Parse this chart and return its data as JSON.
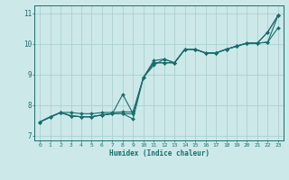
{
  "xlabel": "Humidex (Indice chaleur)",
  "xlim": [
    -0.5,
    23.5
  ],
  "ylim": [
    6.85,
    11.25
  ],
  "xticks": [
    0,
    1,
    2,
    3,
    4,
    5,
    6,
    7,
    8,
    9,
    10,
    11,
    12,
    13,
    14,
    15,
    16,
    17,
    18,
    19,
    20,
    21,
    22,
    23
  ],
  "yticks": [
    7,
    8,
    9,
    10,
    11
  ],
  "bg_color": "#cce8e8",
  "line_color": "#1a6e6e",
  "grid_color": "#a8cccc",
  "line1_x": [
    0,
    1,
    2,
    3,
    4,
    5,
    6,
    7,
    8,
    9,
    10,
    11,
    12,
    13,
    14,
    15,
    16,
    17,
    18,
    19,
    20,
    21,
    22,
    23
  ],
  "line1_y": [
    7.45,
    7.62,
    7.76,
    7.76,
    7.72,
    7.72,
    7.76,
    7.76,
    7.78,
    7.78,
    8.9,
    9.38,
    9.38,
    9.38,
    9.82,
    9.82,
    9.7,
    9.7,
    9.82,
    9.92,
    10.02,
    10.02,
    10.05,
    10.52
  ],
  "line2_x": [
    0,
    1,
    2,
    3,
    4,
    5,
    6,
    7,
    8,
    9,
    10,
    11,
    12,
    13,
    14,
    15,
    16,
    17,
    18,
    19,
    20,
    21,
    22,
    23
  ],
  "line2_y": [
    7.45,
    7.62,
    7.76,
    7.65,
    7.62,
    7.62,
    7.68,
    7.72,
    7.72,
    7.72,
    8.9,
    9.38,
    9.38,
    9.38,
    9.82,
    9.82,
    9.7,
    9.7,
    9.82,
    9.92,
    10.02,
    10.02,
    10.38,
    10.92
  ],
  "line3_x": [
    0,
    2,
    3,
    4,
    5,
    6,
    7,
    8,
    9,
    10,
    11,
    12,
    13,
    14,
    15,
    16,
    17,
    18,
    19,
    20,
    21,
    22,
    23
  ],
  "line3_y": [
    7.45,
    7.76,
    7.65,
    7.62,
    7.62,
    7.68,
    7.72,
    8.35,
    7.72,
    8.9,
    9.45,
    9.5,
    9.38,
    9.82,
    9.82,
    9.7,
    9.7,
    9.82,
    9.92,
    10.02,
    10.02,
    10.38,
    10.92
  ],
  "line4_x": [
    0,
    2,
    3,
    4,
    5,
    6,
    7,
    8,
    9,
    10,
    11,
    12,
    13,
    14,
    15,
    16,
    17,
    18,
    19,
    20,
    21,
    22,
    23
  ],
  "line4_y": [
    7.45,
    7.76,
    7.65,
    7.62,
    7.62,
    7.68,
    7.72,
    7.72,
    7.55,
    8.9,
    9.3,
    9.5,
    9.38,
    9.82,
    9.82,
    9.7,
    9.7,
    9.82,
    9.92,
    10.02,
    10.02,
    10.05,
    10.92
  ]
}
